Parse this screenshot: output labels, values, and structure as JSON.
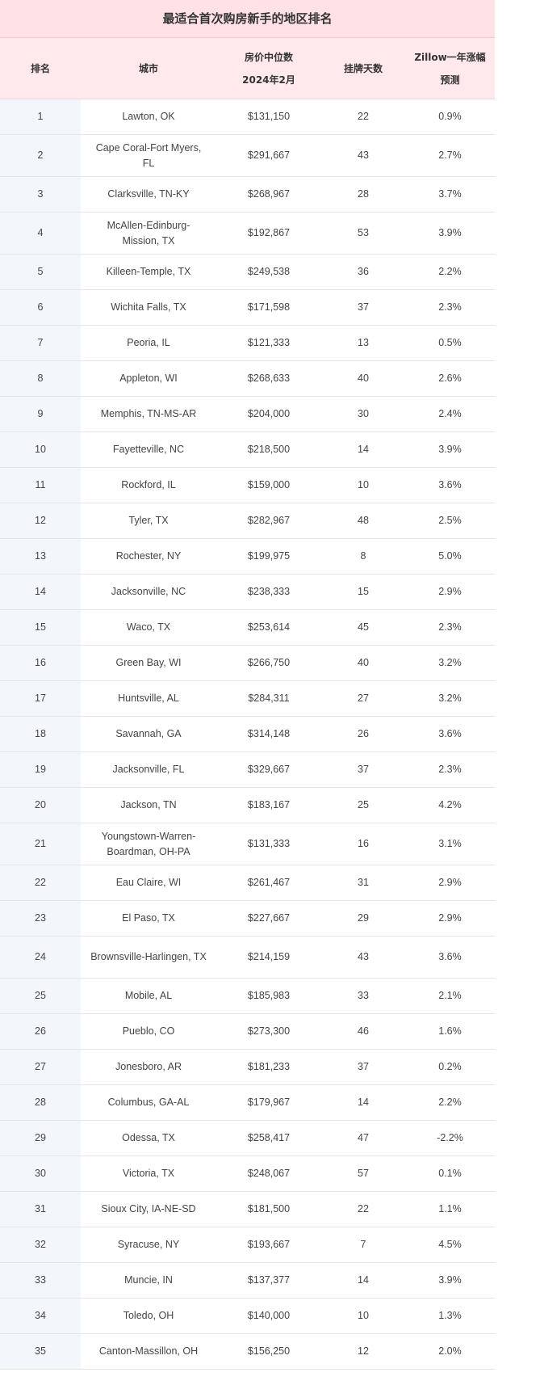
{
  "title": "最适合首次购房新手的地区排名",
  "headers": {
    "rank": "排名",
    "city": "城市",
    "price_line1": "房价中位数",
    "price_line2": "2024年2月",
    "days": "挂牌天数",
    "forecast": "Zillow一年涨幅预测"
  },
  "rows": [
    {
      "rank": "1",
      "city": "Lawton, OK",
      "price": "$131,150",
      "days": "22",
      "forecast": "0.9%"
    },
    {
      "rank": "2",
      "city": "Cape Coral-Fort Myers, FL",
      "price": "$291,667",
      "days": "43",
      "forecast": "2.7%"
    },
    {
      "rank": "3",
      "city": "Clarksville, TN-KY",
      "price": "$268,967",
      "days": "28",
      "forecast": "3.7%"
    },
    {
      "rank": "4",
      "city": "McAllen-Edinburg-Mission, TX",
      "price": "$192,867",
      "days": "53",
      "forecast": "3.9%"
    },
    {
      "rank": "5",
      "city": "Killeen-Temple, TX",
      "price": "$249,538",
      "days": "36",
      "forecast": "2.2%"
    },
    {
      "rank": "6",
      "city": "Wichita Falls, TX",
      "price": "$171,598",
      "days": "37",
      "forecast": "2.3%"
    },
    {
      "rank": "7",
      "city": "Peoria, IL",
      "price": "$121,333",
      "days": "13",
      "forecast": "0.5%"
    },
    {
      "rank": "8",
      "city": "Appleton, WI",
      "price": "$268,633",
      "days": "40",
      "forecast": "2.6%"
    },
    {
      "rank": "9",
      "city": "Memphis, TN-MS-AR",
      "price": "$204,000",
      "days": "30",
      "forecast": "2.4%"
    },
    {
      "rank": "10",
      "city": "Fayetteville, NC",
      "price": "$218,500",
      "days": "14",
      "forecast": "3.9%"
    },
    {
      "rank": "11",
      "city": "Rockford, IL",
      "price": "$159,000",
      "days": "10",
      "forecast": "3.6%"
    },
    {
      "rank": "12",
      "city": "Tyler, TX",
      "price": "$282,967",
      "days": "48",
      "forecast": "2.5%"
    },
    {
      "rank": "13",
      "city": "Rochester, NY",
      "price": "$199,975",
      "days": "8",
      "forecast": "5.0%"
    },
    {
      "rank": "14",
      "city": "Jacksonville, NC",
      "price": "$238,333",
      "days": "15",
      "forecast": "2.9%"
    },
    {
      "rank": "15",
      "city": "Waco, TX",
      "price": "$253,614",
      "days": "45",
      "forecast": "2.3%"
    },
    {
      "rank": "16",
      "city": "Green Bay, WI",
      "price": "$266,750",
      "days": "40",
      "forecast": "3.2%"
    },
    {
      "rank": "17",
      "city": "Huntsville, AL",
      "price": "$284,311",
      "days": "27",
      "forecast": "3.2%"
    },
    {
      "rank": "18",
      "city": "Savannah, GA",
      "price": "$314,148",
      "days": "26",
      "forecast": "3.6%"
    },
    {
      "rank": "19",
      "city": "Jacksonville, FL",
      "price": "$329,667",
      "days": "37",
      "forecast": "2.3%"
    },
    {
      "rank": "20",
      "city": "Jackson, TN",
      "price": "$183,167",
      "days": "25",
      "forecast": "4.2%"
    },
    {
      "rank": "21",
      "city": "Youngstown-Warren-Boardman, OH-PA",
      "price": "$131,333",
      "days": "16",
      "forecast": "3.1%"
    },
    {
      "rank": "22",
      "city": "Eau Claire, WI",
      "price": "$261,467",
      "days": "31",
      "forecast": "2.9%"
    },
    {
      "rank": "23",
      "city": "El Paso, TX",
      "price": "$227,667",
      "days": "29",
      "forecast": "2.9%"
    },
    {
      "rank": "24",
      "city": "Brownsville-Harlingen, TX",
      "price": "$214,159",
      "days": "43",
      "forecast": "3.6%"
    },
    {
      "rank": "25",
      "city": "Mobile, AL",
      "price": "$185,983",
      "days": "33",
      "forecast": "2.1%"
    },
    {
      "rank": "26",
      "city": "Pueblo, CO",
      "price": "$273,300",
      "days": "46",
      "forecast": "1.6%"
    },
    {
      "rank": "27",
      "city": "Jonesboro, AR",
      "price": "$181,233",
      "days": "37",
      "forecast": "0.2%"
    },
    {
      "rank": "28",
      "city": "Columbus, GA-AL",
      "price": "$179,967",
      "days": "14",
      "forecast": "2.2%"
    },
    {
      "rank": "29",
      "city": "Odessa, TX",
      "price": "$258,417",
      "days": "47",
      "forecast": "-2.2%"
    },
    {
      "rank": "30",
      "city": "Victoria, TX",
      "price": "$248,067",
      "days": "57",
      "forecast": "0.1%"
    },
    {
      "rank": "31",
      "city": "Sioux City, IA-NE-SD",
      "price": "$181,500",
      "days": "22",
      "forecast": "1.1%"
    },
    {
      "rank": "32",
      "city": "Syracuse, NY",
      "price": "$193,667",
      "days": "7",
      "forecast": "4.5%"
    },
    {
      "rank": "33",
      "city": "Muncie, IN",
      "price": "$137,377",
      "days": "14",
      "forecast": "3.9%"
    },
    {
      "rank": "34",
      "city": "Toledo, OH",
      "price": "$140,000",
      "days": "10",
      "forecast": "1.3%"
    },
    {
      "rank": "35",
      "city": "Canton-Massillon, OH",
      "price": "$156,250",
      "days": "12",
      "forecast": "2.0%"
    }
  ]
}
